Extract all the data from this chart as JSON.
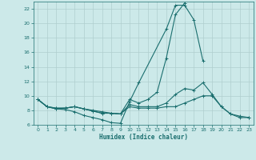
{
  "xlabel": "Humidex (Indice chaleur)",
  "xlim": [
    -0.5,
    23.5
  ],
  "ylim": [
    6,
    23
  ],
  "yticks": [
    6,
    8,
    10,
    12,
    14,
    16,
    18,
    20,
    22
  ],
  "xticks": [
    0,
    1,
    2,
    3,
    4,
    5,
    6,
    7,
    8,
    9,
    10,
    11,
    12,
    13,
    14,
    15,
    16,
    17,
    18,
    19,
    20,
    21,
    22,
    23
  ],
  "bg_color": "#cce9e9",
  "grid_color": "#b0cece",
  "line_color": "#1a6e6e",
  "lines": [
    {
      "x": [
        0,
        1,
        2,
        3,
        4,
        5,
        6,
        7,
        8,
        9,
        10,
        11,
        14,
        15,
        16,
        17,
        18
      ],
      "y": [
        9.5,
        8.5,
        8.2,
        8.1,
        7.8,
        7.3,
        7.0,
        6.7,
        6.3,
        6.2,
        9.2,
        11.8,
        19.2,
        22.5,
        22.5,
        20.5,
        14.8
      ]
    },
    {
      "x": [
        0,
        1,
        2,
        3,
        4,
        5,
        6,
        7,
        8,
        9,
        10,
        11,
        12,
        13,
        14,
        15,
        16
      ],
      "y": [
        9.5,
        8.5,
        8.2,
        8.3,
        8.5,
        8.2,
        8.0,
        7.8,
        7.6,
        7.5,
        9.5,
        9.0,
        9.5,
        10.5,
        15.2,
        21.2,
        22.8
      ]
    },
    {
      "x": [
        0,
        1,
        2,
        3,
        4,
        5,
        6,
        7,
        8,
        9,
        10,
        11,
        12,
        13,
        14,
        15,
        16,
        17,
        18,
        19,
        20,
        21,
        22,
        23
      ],
      "y": [
        9.5,
        8.5,
        8.3,
        8.3,
        8.5,
        8.2,
        7.9,
        7.6,
        7.6,
        7.5,
        8.8,
        8.5,
        8.5,
        8.5,
        9.0,
        10.2,
        11.0,
        10.8,
        11.8,
        10.2,
        8.5,
        7.5,
        7.2,
        7.0
      ]
    },
    {
      "x": [
        0,
        1,
        2,
        3,
        4,
        5,
        6,
        7,
        8,
        9,
        10,
        11,
        12,
        13,
        14,
        15,
        16,
        17,
        18,
        19,
        20,
        21,
        22,
        23
      ],
      "y": [
        9.5,
        8.5,
        8.3,
        8.3,
        8.5,
        8.2,
        7.9,
        7.6,
        7.6,
        7.5,
        8.5,
        8.3,
        8.3,
        8.3,
        8.5,
        8.5,
        9.0,
        9.5,
        10.0,
        10.0,
        8.5,
        7.5,
        7.0,
        7.0
      ]
    }
  ]
}
